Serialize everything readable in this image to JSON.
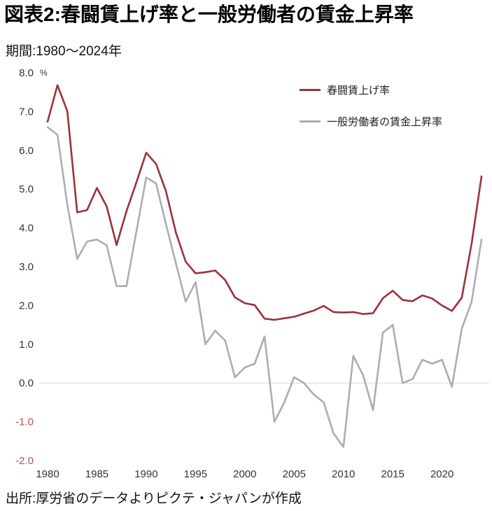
{
  "header": {
    "title": "図表2:春闘賃上げ率と一般労働者の賃金上昇率",
    "period": "期間:1980〜2024年"
  },
  "footer": {
    "source": "出所:厚労省のデータよりピクテ・ジャパンが作成"
  },
  "chart_data": {
    "type": "line",
    "title": "図表2:春闘賃上げ率と一般労働者の賃金上昇率",
    "subtitle": "期間:1980〜2024年",
    "unit_label": "%",
    "xlabel": "",
    "ylabel": "",
    "ylim": [
      -2.0,
      8.0
    ],
    "y_ticks": [
      8.0,
      7.0,
      6.0,
      5.0,
      4.0,
      3.0,
      2.0,
      1.0,
      0.0,
      -1.0,
      -2.0
    ],
    "x_ticks": [
      1980,
      1985,
      1990,
      1995,
      2000,
      2005,
      2010,
      2015,
      2020
    ],
    "grid": "zero-line-only",
    "zero_line": true,
    "legend_position": "top-right",
    "tick_color": "#333333",
    "negative_tick_color": "#c0504d",
    "grid_color": "#d9d9d9",
    "x": [
      1980,
      1981,
      1982,
      1983,
      1984,
      1985,
      1986,
      1987,
      1988,
      1989,
      1990,
      1991,
      1992,
      1993,
      1994,
      1995,
      1996,
      1997,
      1998,
      1999,
      2000,
      2001,
      2002,
      2003,
      2004,
      2005,
      2006,
      2007,
      2008,
      2009,
      2010,
      2011,
      2012,
      2013,
      2014,
      2015,
      2016,
      2017,
      2018,
      2019,
      2020,
      2021,
      2022,
      2023,
      2024
    ],
    "series": [
      {
        "name": "春闘賃上げ率",
        "color": "#9e3038",
        "values": [
          6.74,
          7.68,
          7.01,
          4.4,
          4.46,
          5.03,
          4.55,
          3.56,
          4.43,
          5.17,
          5.94,
          5.65,
          4.95,
          3.89,
          3.13,
          2.83,
          2.86,
          2.9,
          2.66,
          2.21,
          2.06,
          2.01,
          1.66,
          1.63,
          1.67,
          1.71,
          1.79,
          1.87,
          1.99,
          1.83,
          1.82,
          1.83,
          1.78,
          1.8,
          2.19,
          2.38,
          2.14,
          2.11,
          2.26,
          2.18,
          2.0,
          1.86,
          2.2,
          3.6,
          5.33
        ]
      },
      {
        "name": "一般労働者の賃金上昇率",
        "color": "#adadad",
        "values": [
          6.6,
          6.4,
          4.6,
          3.2,
          3.65,
          3.7,
          3.55,
          2.5,
          2.5,
          3.9,
          5.3,
          5.15,
          4.1,
          3.1,
          2.1,
          2.6,
          1.0,
          1.35,
          1.1,
          0.15,
          0.4,
          0.5,
          1.2,
          -1.0,
          -0.5,
          0.15,
          0.0,
          -0.3,
          -0.5,
          -1.3,
          -1.65,
          0.7,
          0.2,
          -0.7,
          1.3,
          1.5,
          0.0,
          0.1,
          0.6,
          0.5,
          0.6,
          -0.1,
          1.4,
          2.1,
          3.7
        ]
      }
    ]
  }
}
